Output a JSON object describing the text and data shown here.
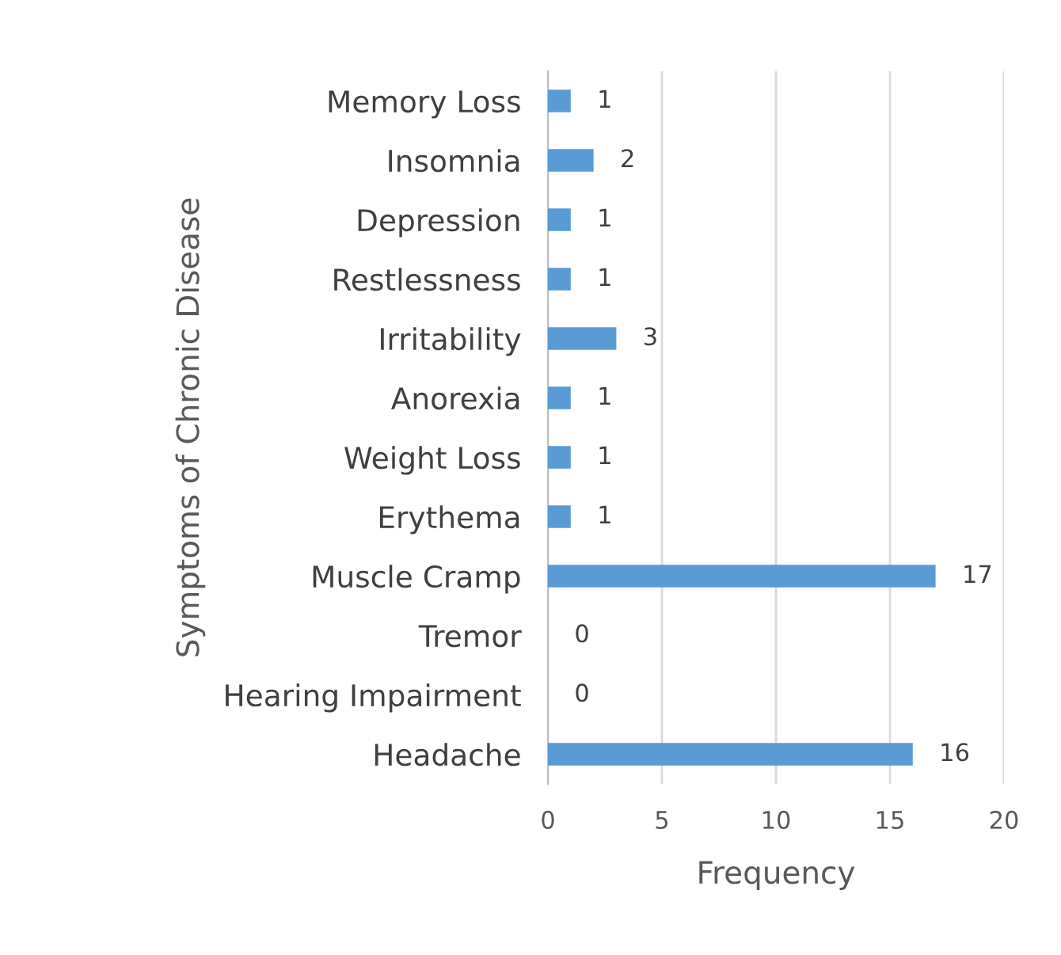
{
  "chart_data": {
    "type": "bar",
    "orientation": "horizontal",
    "categories": [
      "Memory Loss",
      "Insomnia",
      "Depression",
      "Restlessness",
      "Irritability",
      "Anorexia",
      "Weight Loss",
      "Erythema",
      "Muscle Cramp",
      "Tremor",
      "Hearing Impairment",
      "Headache"
    ],
    "values": [
      1,
      2,
      1,
      1,
      3,
      1,
      1,
      1,
      17,
      0,
      0,
      16
    ],
    "color": "#5b9bd5",
    "xlim": [
      0,
      20
    ],
    "xticks": [
      0,
      5,
      10,
      15,
      20
    ],
    "xlabel": "Frequency",
    "ylabel": "Symptoms of Chronic Disease",
    "grid": "x",
    "data_labels": true,
    "legend": false
  }
}
